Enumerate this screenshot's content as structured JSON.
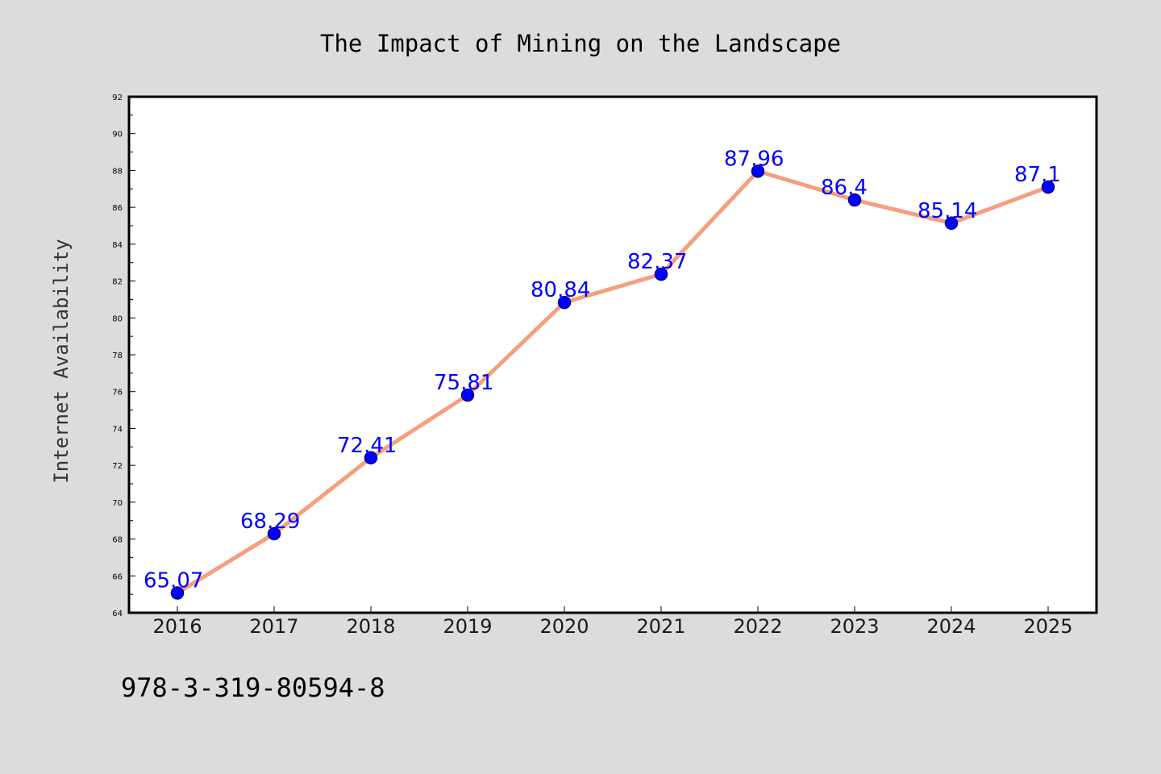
{
  "chart_data": {
    "type": "line",
    "title": "The Impact of Mining on the Landscape",
    "xlabel": "",
    "ylabel": "Internet Availability",
    "categories": [
      "2016",
      "2017",
      "2018",
      "2019",
      "2020",
      "2021",
      "2022",
      "2023",
      "2024",
      "2025"
    ],
    "values": [
      65.07,
      68.29,
      72.41,
      75.81,
      80.84,
      82.37,
      87.96,
      86.4,
      85.14,
      87.1
    ],
    "data_labels": [
      "65.07",
      "68.29",
      "72.41",
      "75.81",
      "80.84",
      "82.37",
      "87.96",
      "86.4",
      "85.14",
      "87.1"
    ],
    "ylim": [
      64,
      92
    ],
    "y_ticks": [
      "64",
      "66",
      "68",
      "70",
      "72",
      "74",
      "76",
      "78",
      "80",
      "82",
      "84",
      "86",
      "88",
      "90",
      "92"
    ],
    "grid": false,
    "legend": "none",
    "colors": {
      "line": "#f4a07e",
      "marker": "#0000ff",
      "marker_edge": "#00008b",
      "data_label": "#0000ff",
      "plot_background": "#ffffff",
      "figure_background": "#dcdcdc"
    }
  },
  "footer": {
    "code": "978-3-319-80594-8"
  }
}
